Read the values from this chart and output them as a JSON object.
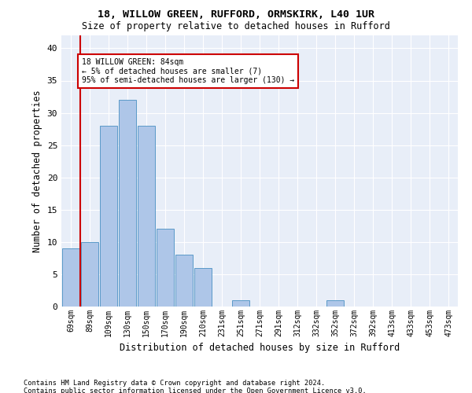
{
  "title1": "18, WILLOW GREEN, RUFFORD, ORMSKIRK, L40 1UR",
  "title2": "Size of property relative to detached houses in Rufford",
  "xlabel": "Distribution of detached houses by size in Rufford",
  "ylabel": "Number of detached properties",
  "categories": [
    "69sqm",
    "89sqm",
    "109sqm",
    "130sqm",
    "150sqm",
    "170sqm",
    "190sqm",
    "210sqm",
    "231sqm",
    "251sqm",
    "271sqm",
    "291sqm",
    "312sqm",
    "332sqm",
    "352sqm",
    "372sqm",
    "392sqm",
    "413sqm",
    "433sqm",
    "453sqm",
    "473sqm"
  ],
  "values": [
    9,
    10,
    28,
    32,
    28,
    12,
    8,
    6,
    0,
    1,
    0,
    0,
    0,
    0,
    1,
    0,
    0,
    0,
    0,
    0,
    0
  ],
  "bar_color": "#aec6e8",
  "bar_edge_color": "#5a9ac8",
  "background_color": "#e8eef8",
  "ylim": [
    0,
    42
  ],
  "yticks": [
    0,
    5,
    10,
    15,
    20,
    25,
    30,
    35,
    40
  ],
  "vline_color": "#cc0000",
  "annotation_text": "18 WILLOW GREEN: 84sqm\n← 5% of detached houses are smaller (7)\n95% of semi-detached houses are larger (130) →",
  "annotation_box_color": "#ffffff",
  "annotation_box_edgecolor": "#cc0000",
  "footer1": "Contains HM Land Registry data © Crown copyright and database right 2024.",
  "footer2": "Contains public sector information licensed under the Open Government Licence v3.0."
}
